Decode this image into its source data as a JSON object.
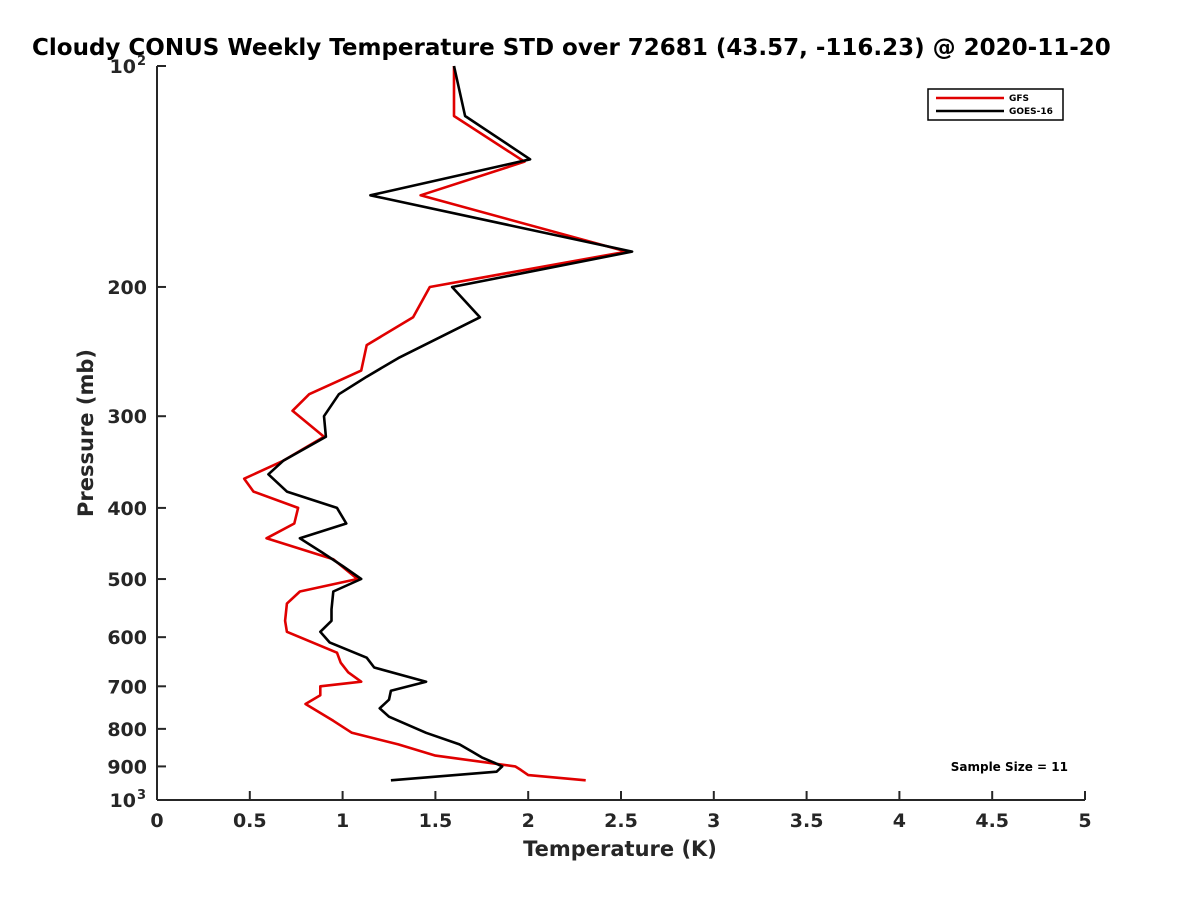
{
  "chart_data": {
    "type": "line",
    "title": "Cloudy CONUS Weekly Temperature STD over 72681 (43.57, -116.23) @ 2020-11-20",
    "xlabel": "Temperature (K)",
    "ylabel": "Pressure (mb)",
    "xlim": [
      0,
      5
    ],
    "ylim": [
      100,
      1000
    ],
    "yscale": "log",
    "y_reversed": true,
    "grid": false,
    "legend_position": "top-right",
    "x_ticks": [
      0,
      0.5,
      1,
      1.5,
      2,
      2.5,
      3,
      3.5,
      4,
      4.5,
      5
    ],
    "x_tick_labels": [
      "0",
      "0.5",
      "1",
      "1.5",
      "2",
      "2.5",
      "3",
      "3.5",
      "4",
      "4.5",
      "5"
    ],
    "y_ticks": [
      {
        "value": 100,
        "base": "10",
        "exp": "2"
      },
      {
        "value": 200,
        "label": "200"
      },
      {
        "value": 300,
        "label": "300"
      },
      {
        "value": 400,
        "label": "400"
      },
      {
        "value": 500,
        "label": "500"
      },
      {
        "value": 600,
        "label": "600"
      },
      {
        "value": 700,
        "label": "700"
      },
      {
        "value": 800,
        "label": "800"
      },
      {
        "value": 900,
        "label": "900"
      },
      {
        "value": 1000,
        "base": "10",
        "exp": "3"
      }
    ],
    "series": [
      {
        "name": "GFS",
        "color": "#e00000",
        "points": [
          [
            1.6,
            100
          ],
          [
            1.6,
            117
          ],
          [
            1.98,
            135
          ],
          [
            1.42,
            150
          ],
          [
            2.53,
            179
          ],
          [
            1.47,
            200
          ],
          [
            1.38,
            220
          ],
          [
            1.13,
            240
          ],
          [
            1.1,
            260
          ],
          [
            0.82,
            280
          ],
          [
            0.73,
            295
          ],
          [
            0.9,
            320
          ],
          [
            0.68,
            345
          ],
          [
            0.47,
            365
          ],
          [
            0.52,
            380
          ],
          [
            0.76,
            400
          ],
          [
            0.74,
            420
          ],
          [
            0.59,
            440
          ],
          [
            0.95,
            470
          ],
          [
            1.08,
            500
          ],
          [
            0.77,
            520
          ],
          [
            0.7,
            540
          ],
          [
            0.69,
            570
          ],
          [
            0.7,
            590
          ],
          [
            0.97,
            630
          ],
          [
            0.99,
            650
          ],
          [
            1.03,
            670
          ],
          [
            1.1,
            690
          ],
          [
            0.88,
            700
          ],
          [
            0.88,
            720
          ],
          [
            0.8,
            740
          ],
          [
            0.95,
            780
          ],
          [
            1.05,
            810
          ],
          [
            1.3,
            840
          ],
          [
            1.5,
            870
          ],
          [
            1.93,
            900
          ],
          [
            1.96,
            910
          ],
          [
            2.0,
            925
          ],
          [
            2.31,
            940
          ]
        ]
      },
      {
        "name": "GOES-16",
        "color": "#000000",
        "points": [
          [
            1.6,
            100
          ],
          [
            1.66,
            117
          ],
          [
            2.01,
            134
          ],
          [
            1.15,
            150
          ],
          [
            2.56,
            179
          ],
          [
            1.59,
            200
          ],
          [
            1.74,
            220
          ],
          [
            1.3,
            250
          ],
          [
            1.13,
            265
          ],
          [
            0.98,
            280
          ],
          [
            0.9,
            300
          ],
          [
            0.91,
            320
          ],
          [
            0.68,
            345
          ],
          [
            0.6,
            360
          ],
          [
            0.7,
            380
          ],
          [
            0.97,
            400
          ],
          [
            1.02,
            420
          ],
          [
            0.77,
            440
          ],
          [
            0.89,
            460
          ],
          [
            1.0,
            480
          ],
          [
            1.1,
            500
          ],
          [
            0.95,
            520
          ],
          [
            0.94,
            550
          ],
          [
            0.94,
            570
          ],
          [
            0.88,
            590
          ],
          [
            0.93,
            610
          ],
          [
            1.13,
            640
          ],
          [
            1.17,
            660
          ],
          [
            1.45,
            690
          ],
          [
            1.26,
            710
          ],
          [
            1.25,
            730
          ],
          [
            1.2,
            750
          ],
          [
            1.25,
            770
          ],
          [
            1.45,
            810
          ],
          [
            1.63,
            840
          ],
          [
            1.7,
            860
          ],
          [
            1.75,
            875
          ],
          [
            1.82,
            890
          ],
          [
            1.86,
            900
          ],
          [
            1.83,
            915
          ],
          [
            1.26,
            940
          ]
        ]
      }
    ],
    "annotations": [
      {
        "text": "Sample Size = 11",
        "position": "bottom-right"
      }
    ]
  }
}
